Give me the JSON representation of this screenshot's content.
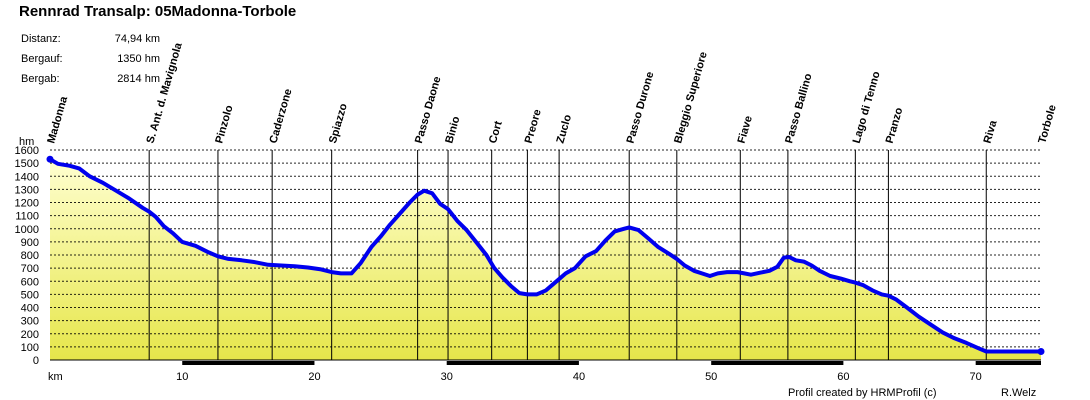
{
  "title": "Rennrad Transalp: 05Madonna-Torbole",
  "stats": [
    {
      "label": "Distanz:",
      "value": "74,94 km"
    },
    {
      "label": "Bergauf:",
      "value": "1350 hm"
    },
    {
      "label": "Bergab:",
      "value": "2814 hm"
    }
  ],
  "footer": {
    "credit": "Profil created by HRMProfil (c)",
    "author": "R.Welz"
  },
  "colors": {
    "profile_line": "#0000ee",
    "fill_light": "#ffffd0",
    "fill_dark": "#e6e64a",
    "grid": "#000000"
  },
  "chart_data": {
    "type": "area",
    "xlabel": "km",
    "ylabel": "hm",
    "xlim": [
      0,
      74.94
    ],
    "ylim": [
      0,
      1600
    ],
    "y_ticks": [
      0,
      100,
      200,
      300,
      400,
      500,
      600,
      700,
      800,
      900,
      1000,
      1100,
      1200,
      1300,
      1400,
      1500,
      1600
    ],
    "x_ticks": [
      10,
      20,
      30,
      40,
      50,
      60,
      70
    ],
    "grid": true,
    "waypoints": [
      {
        "name": "Madonna",
        "km": 0
      },
      {
        "name": "S. Ant. d. Mavignola",
        "km": 7.5
      },
      {
        "name": "Pinzolo",
        "km": 12.7
      },
      {
        "name": "Caderzone",
        "km": 16.8
      },
      {
        "name": "Spiazzo",
        "km": 21.3
      },
      {
        "name": "Passo Daone",
        "km": 27.8
      },
      {
        "name": "Binio",
        "km": 30.1
      },
      {
        "name": "Cort",
        "km": 33.4
      },
      {
        "name": "Preore",
        "km": 36.1
      },
      {
        "name": "Zuclo",
        "km": 38.5
      },
      {
        "name": "Passo Durone",
        "km": 43.8
      },
      {
        "name": "Bleggio Superiore",
        "km": 47.4
      },
      {
        "name": "Fiave",
        "km": 52.2
      },
      {
        "name": "Passo Ballino",
        "km": 55.8
      },
      {
        "name": "Lago di Tenno",
        "km": 60.9
      },
      {
        "name": "Pranzo",
        "km": 63.4
      },
      {
        "name": "Riva",
        "km": 70.8
      },
      {
        "name": "Torbole",
        "km": 74.94
      }
    ],
    "series": [
      {
        "x": [
          0,
          0.6,
          1.5,
          2.2,
          3.0,
          4.0,
          5.0,
          6.0,
          7.0,
          7.5,
          8.0,
          8.6,
          9.3,
          10.0,
          11.0,
          12.0,
          12.7,
          13.5,
          14.5,
          15.5,
          16.5,
          17.5,
          18.5,
          19.5,
          20.5,
          21.3,
          22.0,
          22.8,
          23.5,
          24.3,
          25.0,
          25.7,
          26.5,
          27.2,
          27.8,
          28.3,
          28.9,
          29.5,
          30.1,
          30.8,
          31.5,
          32.3,
          33.0,
          33.6,
          34.2,
          34.9,
          35.5,
          36.1,
          36.8,
          37.5,
          38.3,
          39.0,
          39.7,
          40.5,
          41.3,
          42.0,
          42.7,
          43.4,
          43.8,
          44.5,
          45.2,
          46.0,
          46.8,
          47.4,
          48.0,
          48.7,
          49.3,
          49.9,
          50.5,
          51.2,
          52.0,
          52.5,
          53.0,
          53.7,
          54.4,
          55.0,
          55.5,
          55.9,
          56.4,
          57.0,
          57.6,
          58.2,
          59.0,
          59.8,
          60.5,
          60.9,
          61.5,
          62.2,
          62.9,
          63.4,
          64.0,
          64.8,
          65.7,
          66.6,
          67.5,
          68.4,
          69.3,
          70.2,
          70.8,
          71.5,
          72.5,
          73.5,
          74.94
        ],
        "y": [
          1530,
          1495,
          1480,
          1460,
          1400,
          1350,
          1290,
          1230,
          1160,
          1130,
          1090,
          1020,
          965,
          900,
          870,
          820,
          790,
          770,
          760,
          745,
          725,
          720,
          715,
          705,
          690,
          670,
          660,
          660,
          740,
          860,
          940,
          1030,
          1120,
          1200,
          1260,
          1290,
          1270,
          1190,
          1150,
          1060,
          990,
          890,
          800,
          700,
          630,
          560,
          510,
          500,
          500,
          530,
          600,
          660,
          700,
          790,
          830,
          910,
          980,
          1000,
          1010,
          990,
          930,
          860,
          810,
          770,
          720,
          680,
          660,
          640,
          660,
          670,
          670,
          660,
          650,
          665,
          680,
          710,
          780,
          785,
          760,
          750,
          720,
          680,
          640,
          620,
          600,
          590,
          570,
          530,
          500,
          490,
          460,
          400,
          330,
          270,
          210,
          165,
          130,
          90,
          65,
          65,
          65,
          65,
          65
        ],
        "color": "#0000ee"
      }
    ]
  }
}
